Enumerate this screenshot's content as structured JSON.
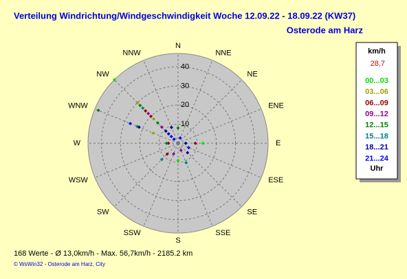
{
  "chart_data": {
    "type": "polar_scatter",
    "title": "Verteilung Windrichtung/Windgeschwindigkeit  Woche 12.09.22 - 18.09.22 (KW37)",
    "subtitle": "Osterode am Harz",
    "categories": [
      "N",
      "NNE",
      "NE",
      "ENE",
      "E",
      "ESE",
      "SE",
      "SSE",
      "S",
      "SSW",
      "SW",
      "WSW",
      "W",
      "WNW",
      "NW",
      "NNW"
    ],
    "rlim": [
      0,
      47
    ],
    "rticks": [
      10,
      20,
      30,
      40
    ],
    "legend_title": "km/h",
    "legend_value": "28,7",
    "legend_footer": "Uhr",
    "series": [
      {
        "name": "00...03",
        "color": "#00e000",
        "directions": [
          315,
          90,
          180
        ],
        "values": [
          47,
          13,
          9
        ]
      },
      {
        "name": "03...06",
        "color": "#a0a000",
        "directions": [
          315,
          315,
          292.5
        ],
        "values": [
          30,
          18,
          14
        ]
      },
      {
        "name": "06...09",
        "color": "#900000",
        "directions": [
          315,
          315,
          90,
          270,
          225
        ],
        "values": [
          24,
          20,
          9,
          5,
          8
        ]
      },
      {
        "name": "09...12",
        "color": "#900090",
        "directions": [
          315,
          315,
          202.5,
          157.5
        ],
        "values": [
          22,
          12,
          6,
          4
        ]
      },
      {
        "name": "12...15",
        "color": "#008000",
        "directions": [
          315,
          292.5,
          315,
          270,
          0
        ],
        "values": [
          28,
          45,
          15,
          6,
          8
        ]
      },
      {
        "name": "15...18",
        "color": "#008080",
        "directions": [
          315,
          292.5,
          225,
          157.5
        ],
        "values": [
          26,
          23,
          12,
          11
        ]
      },
      {
        "name": "18...21",
        "color": "#0000a0",
        "directions": [
          315,
          315,
          292.5,
          337.5,
          90,
          135
        ],
        "values": [
          9,
          7,
          22,
          9,
          4,
          7
        ]
      },
      {
        "name": "21...24",
        "color": "#0000ff",
        "directions": [
          315,
          315,
          22.5,
          112.5,
          292.5
        ],
        "values": [
          5,
          3,
          3,
          6,
          27
        ]
      }
    ],
    "stats": "168 Werte   -   Ø 13,0km/h   -   Max. 56,7km/h   -   2185.2 km",
    "credit": "© WsWin32  -  Osterode am Harz, City"
  }
}
